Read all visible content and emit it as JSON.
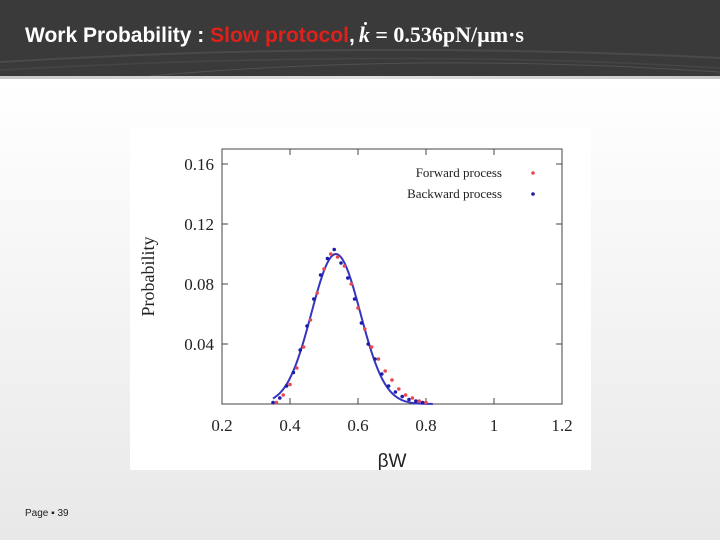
{
  "header": {
    "title_main": "Work Probability : ",
    "title_accent": "Slow protocol",
    "title_sep": ",",
    "formula_var": "k",
    "formula_rest": " = 0.536pN/µm·s"
  },
  "footer": {
    "page_label": "Page ▪ 39"
  },
  "colors": {
    "forward": "#e8484e",
    "backward": "#1c1ca8",
    "fit": "#3535c0",
    "title_accent": "#e0201a"
  },
  "chart_data": {
    "type": "scatter",
    "title": "",
    "xlabel": "βW",
    "ylabel": "Probability",
    "xlim": [
      0.2,
      1.2
    ],
    "ylim": [
      0,
      0.17
    ],
    "x_ticks": [
      0.2,
      0.4,
      0.6,
      0.8,
      1,
      1.2
    ],
    "x_tick_labels": [
      "0.2",
      "0.4",
      "0.6",
      "0.8",
      "1",
      "1.2"
    ],
    "y_ticks": [
      0.04,
      0.08,
      0.12,
      0.16
    ],
    "y_tick_labels": [
      "0.04",
      "0.08",
      "0.12",
      "0.16"
    ],
    "grid": false,
    "legend_position": "top-right",
    "series": [
      {
        "name": "Forward process",
        "x": [
          0.36,
          0.38,
          0.4,
          0.42,
          0.44,
          0.46,
          0.48,
          0.5,
          0.52,
          0.54,
          0.56,
          0.58,
          0.6,
          0.62,
          0.64,
          0.66,
          0.68,
          0.7,
          0.72,
          0.74,
          0.76,
          0.78,
          0.8
        ],
        "y": [
          0.001,
          0.006,
          0.013,
          0.024,
          0.038,
          0.056,
          0.074,
          0.09,
          0.1,
          0.098,
          0.092,
          0.08,
          0.064,
          0.05,
          0.038,
          0.03,
          0.022,
          0.016,
          0.01,
          0.006,
          0.004,
          0.002,
          0.001
        ]
      },
      {
        "name": "Backward process",
        "x": [
          0.35,
          0.37,
          0.39,
          0.41,
          0.43,
          0.45,
          0.47,
          0.49,
          0.51,
          0.53,
          0.55,
          0.57,
          0.59,
          0.61,
          0.63,
          0.65,
          0.67,
          0.69,
          0.71,
          0.73,
          0.75,
          0.77,
          0.79
        ],
        "y": [
          0.001,
          0.004,
          0.012,
          0.021,
          0.036,
          0.052,
          0.07,
          0.086,
          0.097,
          0.103,
          0.094,
          0.084,
          0.07,
          0.054,
          0.04,
          0.03,
          0.02,
          0.012,
          0.008,
          0.005,
          0.003,
          0.002,
          0.001
        ]
      }
    ],
    "fit_curve": {
      "mean": 0.535,
      "sigma": 0.072,
      "peak": 0.1,
      "x_range": [
        0.35,
        0.82
      ]
    }
  }
}
